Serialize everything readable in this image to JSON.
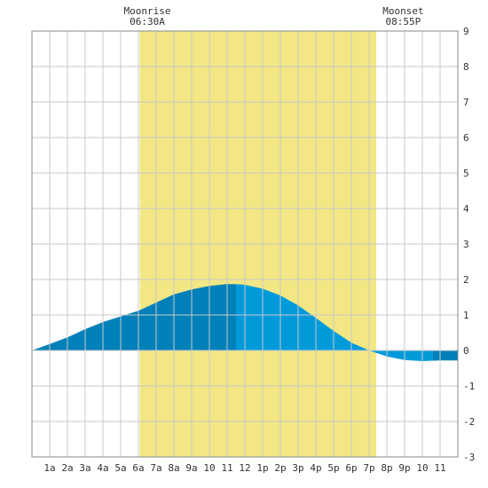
{
  "chart_data": {
    "type": "area",
    "x_unit": "hour of day",
    "xlim": [
      0,
      24
    ],
    "ylim": [
      -3,
      9
    ],
    "y_ticks": [
      -3,
      -2,
      -1,
      0,
      1,
      2,
      3,
      4,
      5,
      6,
      7,
      8,
      9
    ],
    "x_ticks": [
      {
        "x": 1,
        "label": "1a"
      },
      {
        "x": 2,
        "label": "2a"
      },
      {
        "x": 3,
        "label": "3a"
      },
      {
        "x": 4,
        "label": "4a"
      },
      {
        "x": 5,
        "label": "5a"
      },
      {
        "x": 6,
        "label": "6a"
      },
      {
        "x": 7,
        "label": "7a"
      },
      {
        "x": 8,
        "label": "8a"
      },
      {
        "x": 9,
        "label": "9a"
      },
      {
        "x": 10,
        "label": "10"
      },
      {
        "x": 11,
        "label": "11"
      },
      {
        "x": 12,
        "label": "12"
      },
      {
        "x": 13,
        "label": "1p"
      },
      {
        "x": 14,
        "label": "2p"
      },
      {
        "x": 15,
        "label": "3p"
      },
      {
        "x": 16,
        "label": "4p"
      },
      {
        "x": 17,
        "label": "5p"
      },
      {
        "x": 18,
        "label": "6p"
      },
      {
        "x": 19,
        "label": "7p"
      },
      {
        "x": 20,
        "label": "8p"
      },
      {
        "x": 21,
        "label": "9p"
      },
      {
        "x": 22,
        "label": "10"
      },
      {
        "x": 23,
        "label": "11"
      }
    ],
    "grid": true,
    "moonrise": {
      "label": "Moonrise",
      "time": "06:30A",
      "hour": 6.5
    },
    "moonset": {
      "label": "Moonset",
      "time": "08:55P",
      "hour": 20.92
    },
    "daylight_band": {
      "start": 6.08,
      "end": 19.4
    },
    "tide_series": {
      "x": [
        0,
        1,
        2,
        3,
        4,
        5,
        6,
        7,
        8,
        9,
        10,
        11,
        11.5,
        12,
        13,
        14,
        15,
        16,
        17,
        18,
        19,
        20,
        21,
        22,
        23,
        24
      ],
      "y": [
        0.0,
        0.18,
        0.37,
        0.6,
        0.8,
        0.96,
        1.12,
        1.35,
        1.58,
        1.72,
        1.82,
        1.87,
        1.87,
        1.85,
        1.74,
        1.55,
        1.27,
        0.92,
        0.55,
        0.22,
        0.0,
        -0.17,
        -0.27,
        -0.3,
        -0.28,
        -0.28
      ]
    },
    "segments": [
      {
        "from": 0,
        "to": 11.5,
        "color": "#0080b8"
      },
      {
        "from": 11.5,
        "to": 22.6,
        "color": "#009adb"
      },
      {
        "from": 22.6,
        "to": 24,
        "color": "#0080b8"
      }
    ],
    "colors": {
      "daylight": "#f2e784",
      "grid": "#c8c8c8",
      "axis": "#333333"
    }
  }
}
